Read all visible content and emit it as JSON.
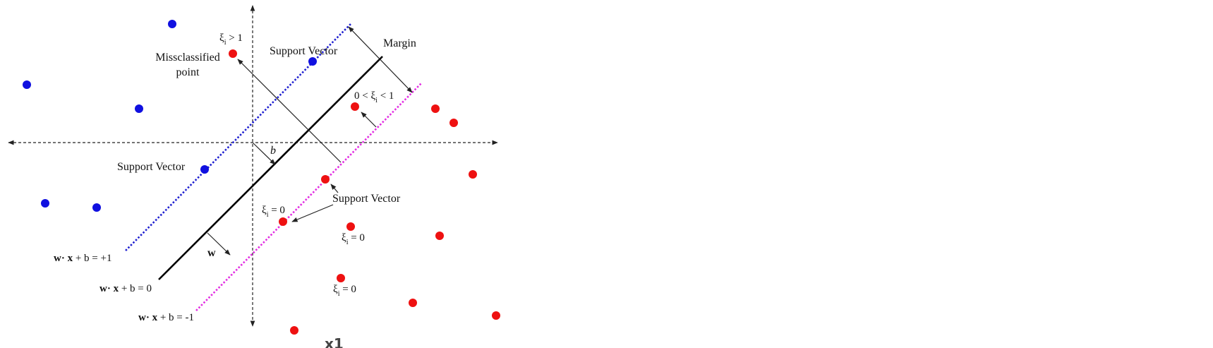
{
  "labels": {
    "margin": "Margin",
    "support_vector_top": "Support Vector",
    "support_vector_left": "Support Vector",
    "support_vector_right": "Support Vector",
    "misclassified_line1": "Missclassified",
    "misclassified_line2": "point",
    "bias": "b",
    "weight": "w",
    "xi_gt1": "ξ",
    "xi_gt1_sub": "i",
    "xi_gt1_rest": " > 1",
    "xi_between_pre": "0 < ξ",
    "xi_between_sub": "i",
    "xi_between_rest": " < 1",
    "xi_zero_1": "ξ",
    "xi_zero_1_sub": "i",
    "xi_zero_1_rest": " = 0",
    "xi_zero_2": "ξ",
    "xi_zero_2_sub": "i",
    "xi_zero_2_rest": " = 0",
    "xi_zero_3": "ξ",
    "xi_zero_3_sub": "i",
    "xi_zero_3_rest": " = 0",
    "eq_plus": "w· x",
    "eq_plus_rest": " + b = +1",
    "eq_zero": "w· x",
    "eq_zero_rest": " + b = 0",
    "eq_minus": "w· x",
    "eq_minus_rest": " + b = -1",
    "cutoff_glyph": "x1"
  },
  "colors": {
    "class_blue": "#1010e0",
    "class_red": "#ee1111",
    "margin_plus": "#1f1fd0",
    "margin_minus": "#e22ee2",
    "hyperplane": "#000000"
  }
}
